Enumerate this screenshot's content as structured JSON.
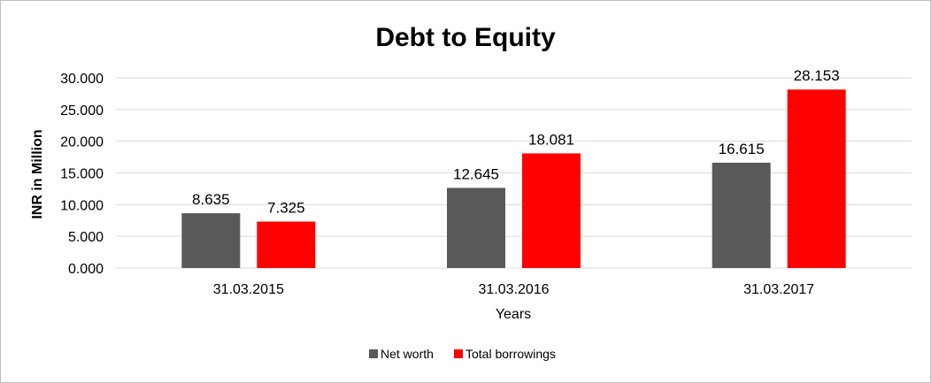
{
  "chart_data": {
    "type": "bar",
    "title": "Debt to Equity",
    "xlabel": "Years",
    "ylabel": "INR in Million",
    "categories": [
      "31.03.2015",
      "31.03.2016",
      "31.03.2017"
    ],
    "series": [
      {
        "name": "Net worth",
        "values": [
          8.635,
          12.645,
          16.615
        ],
        "color": "#595959"
      },
      {
        "name": "Total borrowings",
        "values": [
          7.325,
          18.081,
          28.153
        ],
        "color": "#ff0000"
      }
    ],
    "data_labels": [
      [
        "8.635",
        "12.645",
        "16.615"
      ],
      [
        "7.325",
        "18.081",
        "28.153"
      ]
    ],
    "ylim": [
      0,
      30
    ],
    "yticks": [
      0,
      5,
      10,
      15,
      20,
      25,
      30
    ],
    "ytick_labels": [
      "0.000",
      "5.000",
      "10.000",
      "15.000",
      "20.000",
      "25.000",
      "30.000"
    ],
    "grid": true,
    "legend_position": "bottom"
  }
}
